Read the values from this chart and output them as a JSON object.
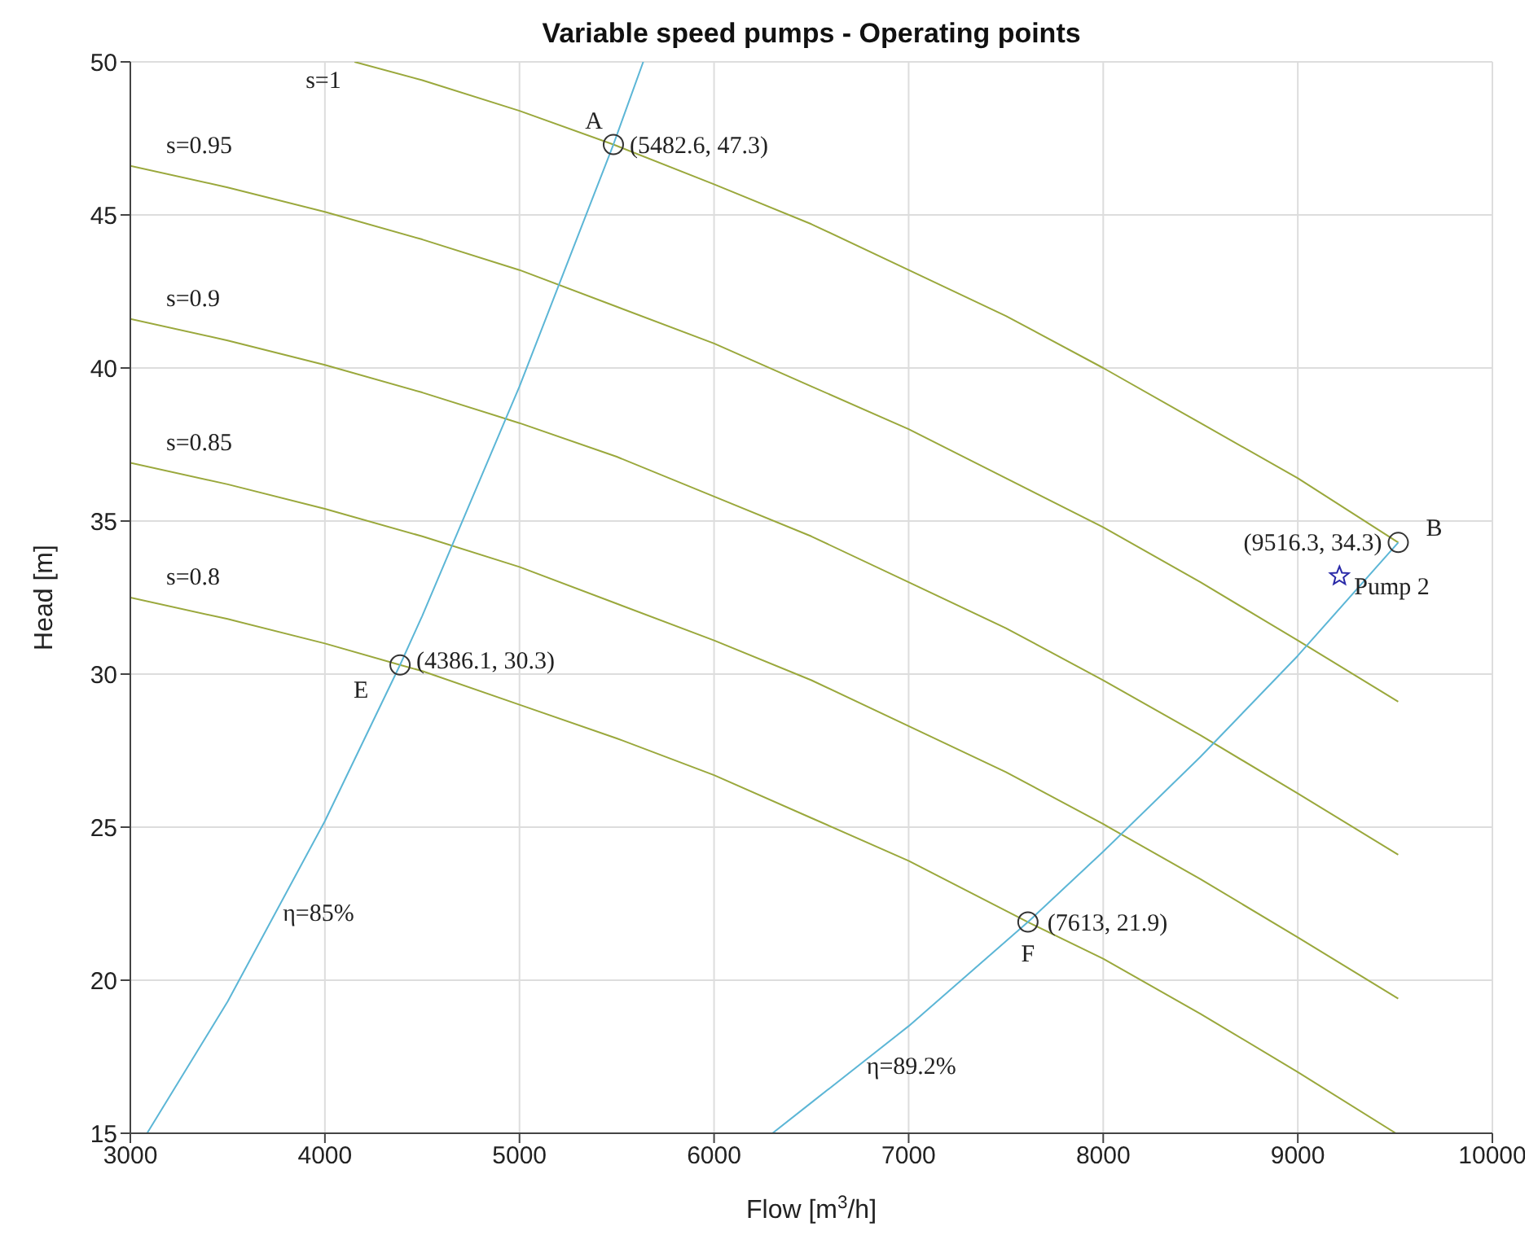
{
  "chart_data": {
    "type": "line",
    "title": "Variable speed pumps - Operating points",
    "xlabel": "Flow [m$^{3}$/h]",
    "ylabel": "Head [m]",
    "xlim": [
      3000,
      10000
    ],
    "xticks": [
      3000,
      4000,
      5000,
      6000,
      7000,
      8000,
      9000,
      10000
    ],
    "ylim": [
      15,
      50
    ],
    "yticks": [
      15,
      20,
      25,
      30,
      35,
      40,
      45,
      50
    ],
    "grid": true,
    "legend": false,
    "series": [
      {
        "name": "s=1",
        "color": "#9aa83c",
        "marker": "none",
        "x": [
          4152,
          4500,
          5000,
          5482.6,
          6000,
          6500,
          7000,
          7500,
          8000,
          8500,
          9000,
          9516.3
        ],
        "values": [
          50.0,
          49.4,
          48.4,
          47.3,
          46.0,
          44.7,
          43.2,
          41.7,
          40.0,
          38.2,
          36.4,
          34.3
        ]
      },
      {
        "name": "s=0.95",
        "color": "#9aa83c",
        "marker": "none",
        "x": [
          3000,
          3500,
          4000,
          4500,
          5000,
          5500,
          6000,
          6500,
          7000,
          7500,
          8000,
          8500,
          9000,
          9516
        ],
        "values": [
          46.6,
          45.9,
          45.1,
          44.2,
          43.2,
          42.0,
          40.8,
          39.4,
          38.0,
          36.4,
          34.8,
          33.0,
          31.1,
          29.1
        ]
      },
      {
        "name": "s=0.9",
        "color": "#9aa83c",
        "marker": "none",
        "x": [
          3000,
          3500,
          4000,
          4500,
          5000,
          5500,
          6000,
          6500,
          7000,
          7500,
          8000,
          8500,
          9000,
          9516
        ],
        "values": [
          41.6,
          40.9,
          40.1,
          39.2,
          38.2,
          37.1,
          35.8,
          34.5,
          33.0,
          31.5,
          29.8,
          28.0,
          26.1,
          24.1
        ]
      },
      {
        "name": "s=0.85",
        "color": "#9aa83c",
        "marker": "none",
        "x": [
          3000,
          3500,
          4000,
          4500,
          5000,
          5500,
          6000,
          6500,
          7000,
          7500,
          8000,
          8500,
          9000,
          9516
        ],
        "values": [
          36.9,
          36.2,
          35.4,
          34.5,
          33.5,
          32.3,
          31.1,
          29.8,
          28.3,
          26.8,
          25.1,
          23.3,
          21.4,
          19.4
        ]
      },
      {
        "name": "s=0.8",
        "color": "#9aa83c",
        "marker": "none",
        "x": [
          3000,
          3500,
          4000,
          4386.1,
          4500,
          5000,
          5500,
          6000,
          6500,
          7000,
          7613,
          8000,
          8500,
          9000,
          9504
        ],
        "values": [
          32.5,
          31.8,
          31.0,
          30.3,
          30.1,
          29.0,
          27.9,
          26.7,
          25.3,
          23.9,
          21.9,
          20.7,
          18.9,
          17.0,
          15.0
        ]
      },
      {
        "name": "η=85%",
        "color": "#5cb6d6",
        "marker": "none",
        "x": [
          3086,
          3500,
          4000,
          4386.1,
          4500,
          5000,
          5482.6,
          5636
        ],
        "values": [
          15.0,
          19.3,
          25.2,
          30.3,
          31.9,
          39.4,
          47.3,
          50.0
        ]
      },
      {
        "name": "η=89.2%",
        "color": "#5cb6d6",
        "marker": "none",
        "x": [
          6300,
          6500,
          7000,
          7613,
          8000,
          8500,
          9000,
          9516.3
        ],
        "values": [
          15.0,
          16.0,
          18.5,
          21.9,
          24.2,
          27.3,
          30.6,
          34.3
        ]
      },
      {
        "type": "scatter",
        "color": "#333333",
        "marker": "circle",
        "x": [
          5482.6,
          9516.3,
          4386.1,
          7613
        ],
        "values": [
          47.3,
          34.3,
          30.3,
          21.9
        ]
      },
      {
        "name": "Pump 2",
        "type": "scatter",
        "color": "#2a2aa8",
        "marker": "star",
        "x": [
          9214
        ],
        "values": [
          33.2
        ]
      }
    ],
    "annotations": [
      {
        "text": "A",
        "x": 5482.6,
        "y": 47.3
      },
      {
        "text": "(5482.6, 47.3)",
        "x": 5482.6,
        "y": 47.3
      },
      {
        "text": "B",
        "x": 9516.3,
        "y": 34.3
      },
      {
        "text": "(9516.3, 34.3)",
        "x": 9516.3,
        "y": 34.3
      },
      {
        "text": "E",
        "x": 4386.1,
        "y": 30.3
      },
      {
        "text": "(4386.1, 30.3)",
        "x": 4386.1,
        "y": 30.3
      },
      {
        "text": "F",
        "x": 7613,
        "y": 21.9
      },
      {
        "text": "(7613, 21.9)",
        "x": 7613,
        "y": 21.9
      }
    ]
  }
}
